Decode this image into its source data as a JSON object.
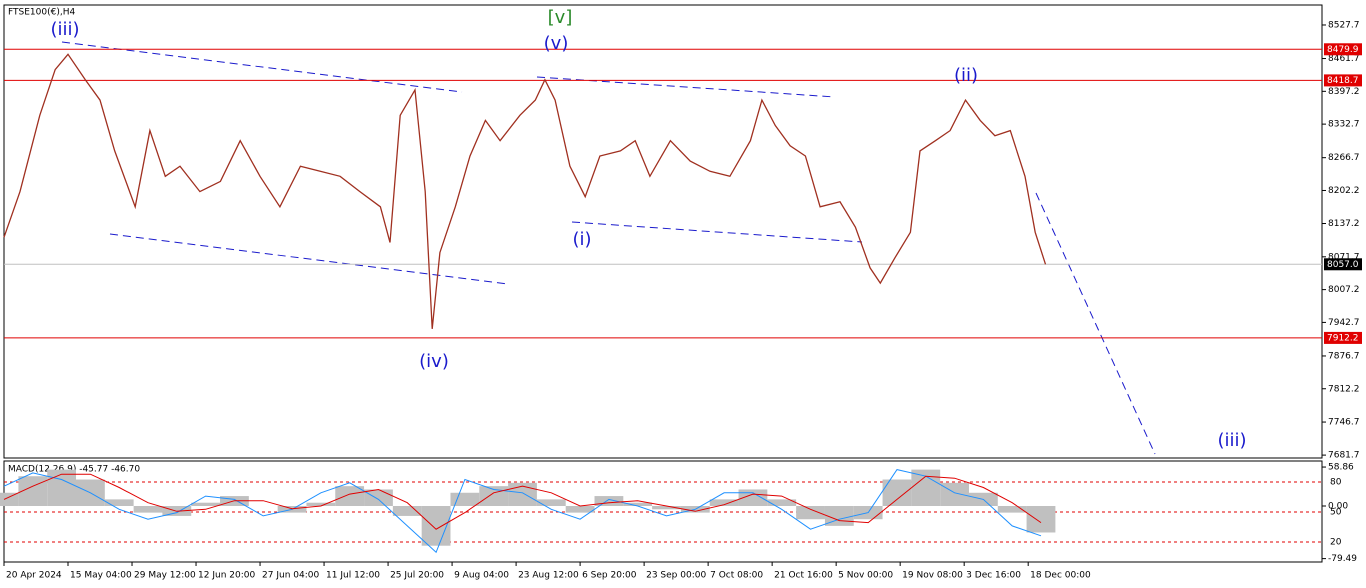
{
  "chart_data": [
    {
      "type": "line",
      "title": "FTSE100(€),H4",
      "xlim": [
        0,
        20.59
      ],
      "xticks": [
        {
          "value": 0,
          "label": "20 Apr 2024"
        },
        {
          "value": 1,
          "label": "15 May 04:00"
        },
        {
          "value": 2,
          "label": "29 May 12:00"
        },
        {
          "value": 3,
          "label": "12 Jun 20:00"
        },
        {
          "value": 4,
          "label": "27 Jun 04:00"
        },
        {
          "value": 5,
          "label": "11 Jul 12:00"
        },
        {
          "value": 6,
          "label": "25 Jul 20:00"
        },
        {
          "value": 7,
          "label": "9 Aug 04:00"
        },
        {
          "value": 8,
          "label": "23 Aug 12:00"
        },
        {
          "value": 9,
          "label": "6 Sep 20:00"
        },
        {
          "value": 10,
          "label": "23 Sep 00:00"
        },
        {
          "value": 11,
          "label": "7 Oct 08:00"
        },
        {
          "value": 12,
          "label": "21 Oct 16:00"
        },
        {
          "value": 13,
          "label": "5 Nov 00:00"
        },
        {
          "value": 14,
          "label": "19 Nov 08:00"
        },
        {
          "value": 15,
          "label": "3 Dec 16:00"
        },
        {
          "value": 16,
          "label": "18 Dec 00:00"
        }
      ],
      "ylim": [
        7676,
        8567
      ],
      "yticks": [
        8527.7,
        8461.7,
        8397.2,
        8332.7,
        8266.7,
        8202.2,
        8137.2,
        8071.7,
        8007.2,
        7942.7,
        7876.7,
        7812.2,
        7746.7,
        7681.7
      ],
      "hlines": [
        {
          "value": 8479.9,
          "color": "#e00000"
        },
        {
          "value": 8418.7,
          "color": "#e00000"
        },
        {
          "value": 7912.2,
          "color": "#e00000"
        },
        {
          "value": 8057,
          "label": "8057.0",
          "color": "#c0c0c0"
        }
      ],
      "series": [
        {
          "color": "#a03020",
          "x": [
            0,
            0.25,
            0.56,
            0.8,
            1.0,
            1.27,
            1.5,
            1.73,
            2.05,
            2.28,
            2.52,
            2.75,
            3.06,
            3.38,
            3.69,
            4.0,
            4.31,
            4.63,
            4.94,
            5.25,
            5.56,
            5.88,
            6.03,
            6.19,
            6.42,
            6.58,
            6.69,
            6.81,
            7.05,
            7.28,
            7.52,
            7.75,
            8.06,
            8.3,
            8.45,
            8.61,
            8.84,
            9.08,
            9.31,
            9.63,
            9.86,
            10.09,
            10.41,
            10.72,
            11.03,
            11.34,
            11.66,
            11.84,
            12.05,
            12.28,
            12.52,
            12.75,
            13.06,
            13.3,
            13.53,
            13.69,
            13.92,
            14.16,
            14.31,
            14.55,
            14.78,
            15.02,
            15.25,
            15.48,
            15.72,
            15.95,
            16.11,
            16.27
          ],
          "values": [
            8110,
            8200,
            8350,
            8440,
            8470,
            8420,
            8380,
            8280,
            8170,
            8320,
            8230,
            8250,
            8200,
            8220,
            8300,
            8230,
            8170,
            8250,
            8240,
            8230,
            8200,
            8170,
            8100,
            8350,
            8400,
            8200,
            7930,
            8080,
            8170,
            8270,
            8340,
            8300,
            8350,
            8380,
            8420,
            8380,
            8250,
            8190,
            8270,
            8280,
            8300,
            8230,
            8300,
            8260,
            8240,
            8230,
            8300,
            8380,
            8330,
            8290,
            8270,
            8170,
            8180,
            8130,
            8050,
            8020,
            8070,
            8120,
            8280,
            8300,
            8320,
            8380,
            8340,
            8310,
            8320,
            8230,
            8120,
            8057
          ]
        }
      ],
      "annotations": [
        "(iii)",
        "[v]",
        "(v)",
        "(i)",
        "(iv)",
        "(ii)",
        "(iii)"
      ]
    },
    {
      "type": "macd",
      "title": "MACD(12,26,9) -45.77 -46.70",
      "xlim": [
        0,
        20.59
      ],
      "ylim": [
        -84.6,
        68
      ],
      "yticks": [
        58.86,
        {
          "value": 0,
          "label": "0.00"
        },
        -79.49
      ],
      "y2lim": [
        0,
        101
      ],
      "y2ticks": [
        80,
        50,
        20
      ],
      "x": [
        0,
        0.45,
        0.9,
        1.35,
        1.8,
        2.25,
        2.7,
        3.15,
        3.6,
        4.05,
        4.5,
        4.95,
        5.4,
        5.85,
        6.3,
        6.75,
        7.2,
        7.65,
        8.1,
        8.55,
        9.0,
        9.45,
        9.9,
        10.35,
        10.8,
        11.25,
        11.7,
        12.15,
        12.6,
        13.05,
        13.5,
        13.95,
        14.4,
        14.85,
        15.3,
        15.75,
        16.2
      ],
      "series": [
        {
          "color": "#c0c0c0",
          "values": [
            20,
            45,
            55,
            40,
            10,
            -10,
            -15,
            5,
            15,
            0,
            -10,
            5,
            30,
            25,
            -15,
            -60,
            20,
            30,
            35,
            10,
            -10,
            15,
            5,
            -5,
            -10,
            10,
            25,
            10,
            -20,
            -30,
            -20,
            40,
            55,
            35,
            20,
            -10,
            -40
          ]
        },
        {
          "color": "#e00000",
          "values": [
            10,
            30,
            48,
            48,
            28,
            5,
            -8,
            -5,
            8,
            8,
            -4,
            0,
            18,
            25,
            5,
            -35,
            -10,
            20,
            30,
            20,
            0,
            5,
            8,
            0,
            -8,
            2,
            18,
            15,
            -5,
            -22,
            -25,
            10,
            45,
            42,
            28,
            5,
            -25
          ]
        },
        {
          "color": "#1e90ff",
          "values": [
            30,
            50,
            40,
            20,
            -5,
            -20,
            -10,
            15,
            10,
            -15,
            -5,
            20,
            35,
            10,
            -30,
            -70,
            40,
            25,
            20,
            -5,
            -20,
            10,
            0,
            -15,
            -5,
            20,
            20,
            -5,
            -35,
            -20,
            -10,
            55,
            45,
            20,
            10,
            -30,
            -45
          ]
        }
      ]
    }
  ]
}
